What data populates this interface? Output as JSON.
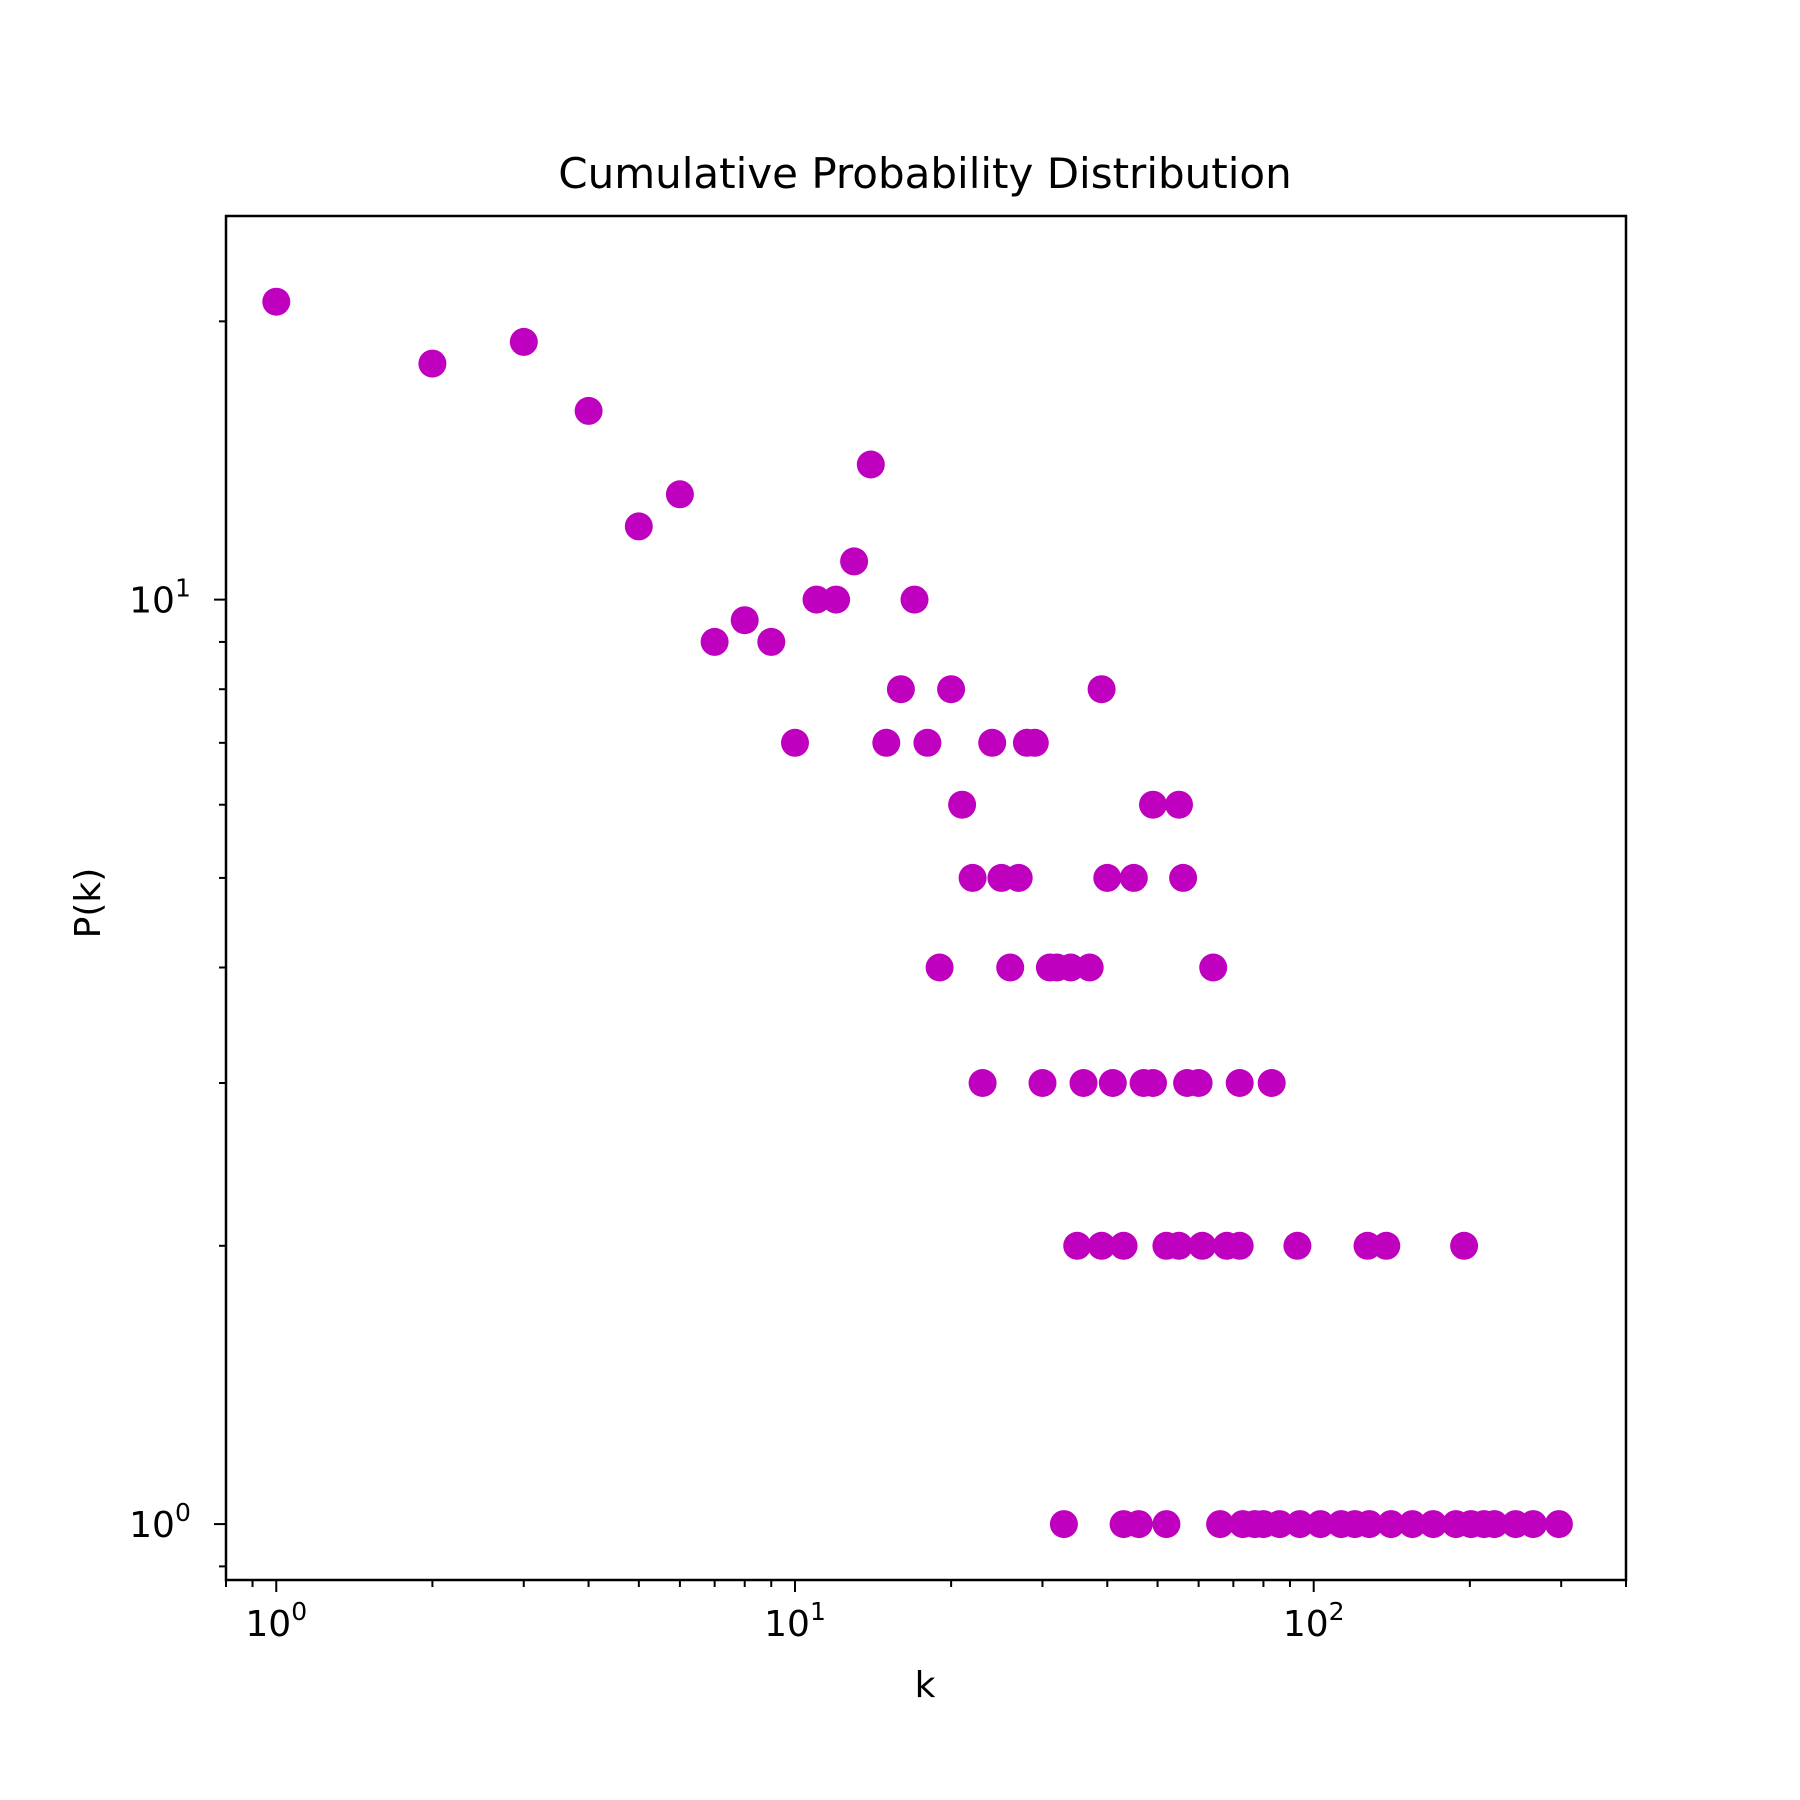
{
  "chart_data": {
    "type": "scatter",
    "title": "Cumulative Probability Distribution",
    "xlabel": "k",
    "ylabel": "P(k)",
    "xscale": "log",
    "yscale": "log",
    "xlim": [
      0.8,
      400
    ],
    "ylim": [
      0.87,
      26
    ],
    "grid": false,
    "legend": "none",
    "marker_color": "#bf00bf",
    "xticks": [
      {
        "value": 1,
        "base": "10",
        "exp": "0"
      },
      {
        "value": 10,
        "base": "10",
        "exp": "1"
      },
      {
        "value": 100,
        "base": "10",
        "exp": "2"
      }
    ],
    "yticks": [
      {
        "value": 1,
        "base": "10",
        "exp": "0"
      },
      {
        "value": 10,
        "base": "10",
        "exp": "1"
      }
    ],
    "points": [
      [
        1,
        21
      ],
      [
        2,
        18
      ],
      [
        3,
        19
      ],
      [
        4,
        16
      ],
      [
        5,
        12
      ],
      [
        6,
        13
      ],
      [
        7,
        9
      ],
      [
        8,
        9.5
      ],
      [
        9,
        9
      ],
      [
        10,
        7
      ],
      [
        11,
        10
      ],
      [
        12,
        10
      ],
      [
        13,
        11
      ],
      [
        14,
        14
      ],
      [
        15,
        7
      ],
      [
        16,
        8
      ],
      [
        17,
        10
      ],
      [
        18,
        7
      ],
      [
        19,
        4
      ],
      [
        20,
        8
      ],
      [
        21,
        6
      ],
      [
        22,
        5
      ],
      [
        23,
        3
      ],
      [
        24,
        7
      ],
      [
        25,
        5
      ],
      [
        26,
        4
      ],
      [
        27,
        5
      ],
      [
        28,
        7
      ],
      [
        29,
        7
      ],
      [
        30,
        3
      ],
      [
        31,
        4
      ],
      [
        32,
        4
      ],
      [
        34,
        4
      ],
      [
        37,
        4
      ],
      [
        39,
        8
      ],
      [
        40,
        5
      ],
      [
        45,
        5
      ],
      [
        49,
        6
      ],
      [
        55,
        6
      ],
      [
        56,
        5
      ],
      [
        64,
        4
      ],
      [
        36,
        3
      ],
      [
        41,
        3
      ],
      [
        47,
        3
      ],
      [
        49,
        3
      ],
      [
        57,
        3
      ],
      [
        60,
        3
      ],
      [
        72,
        3
      ],
      [
        83,
        3
      ],
      [
        35,
        2
      ],
      [
        39,
        2
      ],
      [
        43,
        2
      ],
      [
        52,
        2
      ],
      [
        55,
        2
      ],
      [
        61,
        2
      ],
      [
        68,
        2
      ],
      [
        72,
        2
      ],
      [
        93,
        2
      ],
      [
        127,
        2
      ],
      [
        138,
        2
      ],
      [
        195,
        2
      ],
      [
        33,
        1
      ],
      [
        43,
        1
      ],
      [
        46,
        1
      ],
      [
        52,
        1
      ],
      [
        66,
        1
      ],
      [
        73,
        1
      ],
      [
        77,
        1
      ],
      [
        80,
        1
      ],
      [
        86,
        1
      ],
      [
        94,
        1
      ],
      [
        103,
        1
      ],
      [
        113,
        1
      ],
      [
        120,
        1
      ],
      [
        128,
        1
      ],
      [
        141,
        1
      ],
      [
        155,
        1
      ],
      [
        170,
        1
      ],
      [
        188,
        1
      ],
      [
        201,
        1
      ],
      [
        213,
        1
      ],
      [
        223,
        1
      ],
      [
        245,
        1
      ],
      [
        265,
        1
      ],
      [
        297,
        1
      ]
    ]
  }
}
